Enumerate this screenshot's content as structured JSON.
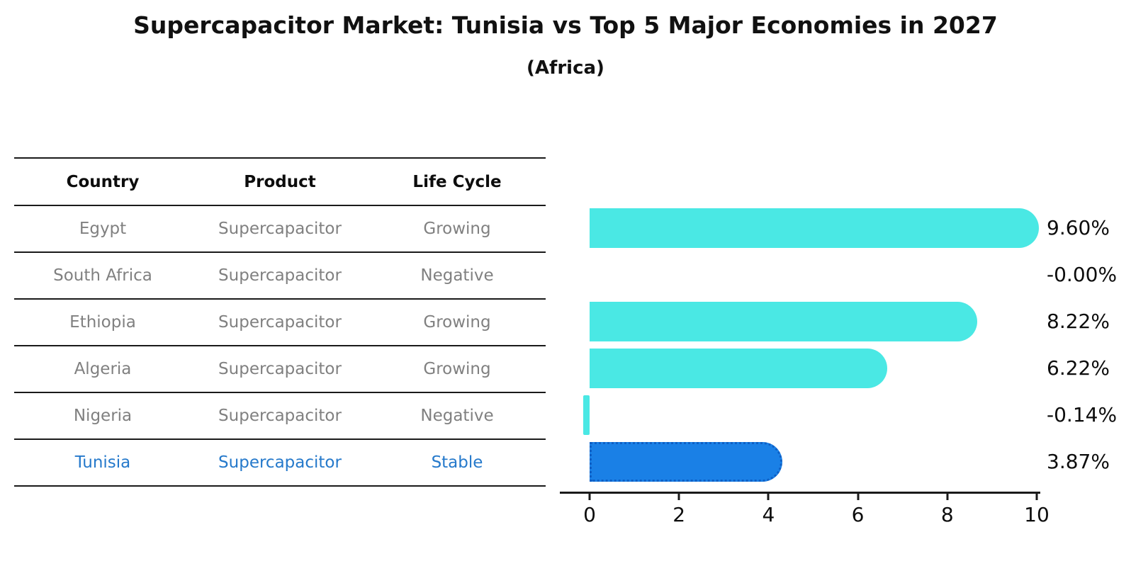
{
  "title": "Supercapacitor Market: Tunisia vs Top 5 Major Economies in 2027",
  "subtitle": "(Africa)",
  "table": {
    "columns": [
      "Country",
      "Product",
      "Life Cycle"
    ],
    "rows": [
      {
        "country": "Egypt",
        "product": "Supercapacitor",
        "life_cycle": "Growing",
        "highlight": false
      },
      {
        "country": "South Africa",
        "product": "Supercapacitor",
        "life_cycle": "Negative",
        "highlight": false
      },
      {
        "country": "Ethiopia",
        "product": "Supercapacitor",
        "life_cycle": "Growing",
        "highlight": false
      },
      {
        "country": "Algeria",
        "product": "Supercapacitor",
        "life_cycle": "Growing",
        "highlight": false
      },
      {
        "country": "Nigeria",
        "product": "Supercapacitor",
        "life_cycle": "Negative",
        "highlight": false
      },
      {
        "country": "Tunisia",
        "product": "Supercapacitor",
        "life_cycle": "Stable",
        "highlight": true
      }
    ]
  },
  "chart_data": {
    "type": "bar",
    "orientation": "horizontal",
    "title": "Supercapacitor Market: Tunisia vs Top 5 Major Economies in 2027",
    "subtitle": "(Africa)",
    "categories": [
      "Egypt",
      "South Africa",
      "Ethiopia",
      "Algeria",
      "Nigeria",
      "Tunisia"
    ],
    "values": [
      9.6,
      -0.0,
      8.22,
      6.22,
      -0.14,
      3.87
    ],
    "value_labels": [
      "9.60%",
      "-0.00%",
      "8.22%",
      "6.22%",
      "-0.14%",
      "3.87%"
    ],
    "x_ticks": [
      0,
      2,
      4,
      6,
      8,
      10
    ],
    "xlim": [
      -0.67,
      10.08
    ],
    "xlabel": "",
    "ylabel": "",
    "grid": false,
    "legend": "none",
    "bar_color": "#4AE8E4",
    "highlight_color": "#1A80E6",
    "highlight_border": "#0E5FC5",
    "highlight_index": 5
  },
  "colors": {
    "background": "#ffffff",
    "text_muted": "#808080",
    "text_header": "#0d0d0d",
    "highlight_text": "#2579CB",
    "axis": "#1a1a1a"
  }
}
